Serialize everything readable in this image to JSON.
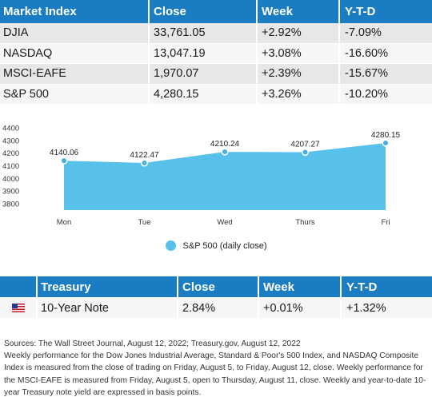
{
  "market_table": {
    "headers": [
      "Market Index",
      "Close",
      "Week",
      "Y-T-D"
    ],
    "rows": [
      {
        "index": "DJIA",
        "close": "33,761.05",
        "week": "+2.92%",
        "ytd": "-7.09%"
      },
      {
        "index": "NASDAQ",
        "close": "13,047.19",
        "week": "+3.08%",
        "ytd": "-16.60%"
      },
      {
        "index": "MSCI-EAFE",
        "close": "1,970.07",
        "week": "+2.39%",
        "ytd": "-15.67%"
      },
      {
        "index": "S&P 500",
        "close": "4,280.15",
        "week": "+3.26%",
        "ytd": "-10.20%"
      }
    ]
  },
  "chart_data": {
    "type": "area",
    "title": "",
    "xlabel": "",
    "ylabel": "",
    "categories": [
      "Mon",
      "Tue",
      "Wed",
      "Thurs",
      "Fri"
    ],
    "series": [
      {
        "name": "S&P 500 (daily close)",
        "values": [
          4140.06,
          4122.47,
          4210.24,
          4207.27,
          4280.15
        ]
      }
    ],
    "value_labels": [
      "4140.06",
      "4122.47",
      "4210.24",
      "4207.27",
      "4280.15"
    ],
    "yticks": [
      3800,
      3900,
      4000,
      4100,
      4200,
      4300,
      4400
    ],
    "ylim": [
      3750,
      4400
    ],
    "grid": false,
    "legend_position": "bottom-center",
    "color": "#57c0eb",
    "point_color": "#4aaee0"
  },
  "treasury_table": {
    "headers": [
      "",
      "Treasury",
      "Close",
      "Week",
      "Y-T-D"
    ],
    "row": {
      "flag": "us-flag-icon",
      "name": "10-Year Note",
      "close": "2.84%",
      "week": "+0.01%",
      "ytd": "+1.32%"
    }
  },
  "notes": {
    "sources": "Sources: The Wall Street Journal, August 12, 2022; Treasury.gov, August 12, 2022",
    "body": "Weekly performance for the Dow Jones Industrial Average, Standard & Poor's 500 Index, and NASDAQ Composite Index is measured from the close of trading on Friday, August 5, to Friday, August 12, close. Weekly performance for the MSCI-EAFE is measured from Friday, August 5, open to Thursday, August 11, close. Weekly and year-to-date 10-year Treasury note yield are expressed in basis points."
  }
}
